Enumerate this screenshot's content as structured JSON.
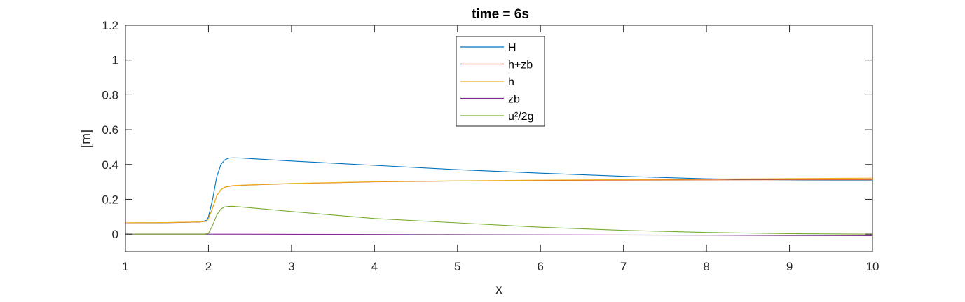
{
  "chart_data": {
    "type": "line",
    "title": "time = 6s",
    "xlabel": "x",
    "ylabel": "[m]",
    "xlim": [
      1,
      10
    ],
    "ylim": [
      -0.1,
      1.2
    ],
    "xticks": [
      "1",
      "2",
      "3",
      "4",
      "5",
      "6",
      "7",
      "8",
      "9",
      "10"
    ],
    "yticks": [
      "0",
      "0.2",
      "0.4",
      "0.6",
      "0.8",
      "1",
      "1.2"
    ],
    "grid": false,
    "legend_position": "top-center",
    "series": [
      {
        "name": "H",
        "color": "#0072BD",
        "x": [
          1,
          1.5,
          1.9,
          1.98,
          2.0,
          2.05,
          2.1,
          2.15,
          2.2,
          2.25,
          2.3,
          2.4,
          2.5,
          3,
          4,
          5,
          6,
          7,
          8,
          8.5,
          9,
          9.5,
          10
        ],
        "y": [
          0.065,
          0.066,
          0.07,
          0.08,
          0.1,
          0.2,
          0.33,
          0.4,
          0.428,
          0.437,
          0.438,
          0.437,
          0.434,
          0.42,
          0.395,
          0.37,
          0.35,
          0.332,
          0.318,
          0.314,
          0.311,
          0.31,
          0.31
        ]
      },
      {
        "name": "h+zb",
        "color": "#D95319",
        "x": [
          1,
          1.5,
          1.9,
          1.98,
          2.0,
          2.05,
          2.1,
          2.15,
          2.2,
          2.3,
          2.5,
          3,
          4,
          5,
          6,
          7,
          8,
          9,
          10
        ],
        "y": [
          0.065,
          0.066,
          0.07,
          0.075,
          0.09,
          0.15,
          0.22,
          0.255,
          0.27,
          0.278,
          0.282,
          0.29,
          0.3,
          0.305,
          0.308,
          0.31,
          0.311,
          0.312,
          0.312
        ]
      },
      {
        "name": "h",
        "color": "#EDB120",
        "x": [
          1,
          1.5,
          1.9,
          1.98,
          2.0,
          2.05,
          2.1,
          2.15,
          2.2,
          2.3,
          2.5,
          3,
          4,
          5,
          6,
          7,
          8,
          9,
          10
        ],
        "y": [
          0.066,
          0.067,
          0.071,
          0.076,
          0.091,
          0.151,
          0.221,
          0.256,
          0.271,
          0.279,
          0.283,
          0.291,
          0.301,
          0.306,
          0.31,
          0.313,
          0.316,
          0.319,
          0.322
        ]
      },
      {
        "name": "zb",
        "color": "#7E2F8E",
        "x": [
          1,
          2,
          3,
          4,
          5,
          6,
          7,
          8,
          9,
          10
        ],
        "y": [
          0,
          0,
          -0.001,
          -0.002,
          -0.003,
          -0.004,
          -0.005,
          -0.006,
          -0.008,
          -0.009
        ]
      },
      {
        "name": "u²/2g",
        "color": "#77AC30",
        "x": [
          1,
          1.5,
          1.95,
          2.0,
          2.05,
          2.1,
          2.15,
          2.2,
          2.25,
          2.3,
          2.4,
          2.5,
          3,
          3.5,
          4,
          5,
          6,
          7,
          8,
          9,
          10
        ],
        "y": [
          0,
          0,
          0,
          0.005,
          0.05,
          0.11,
          0.145,
          0.157,
          0.16,
          0.16,
          0.156,
          0.152,
          0.13,
          0.11,
          0.09,
          0.065,
          0.04,
          0.022,
          0.01,
          0.003,
          0
        ]
      }
    ]
  }
}
